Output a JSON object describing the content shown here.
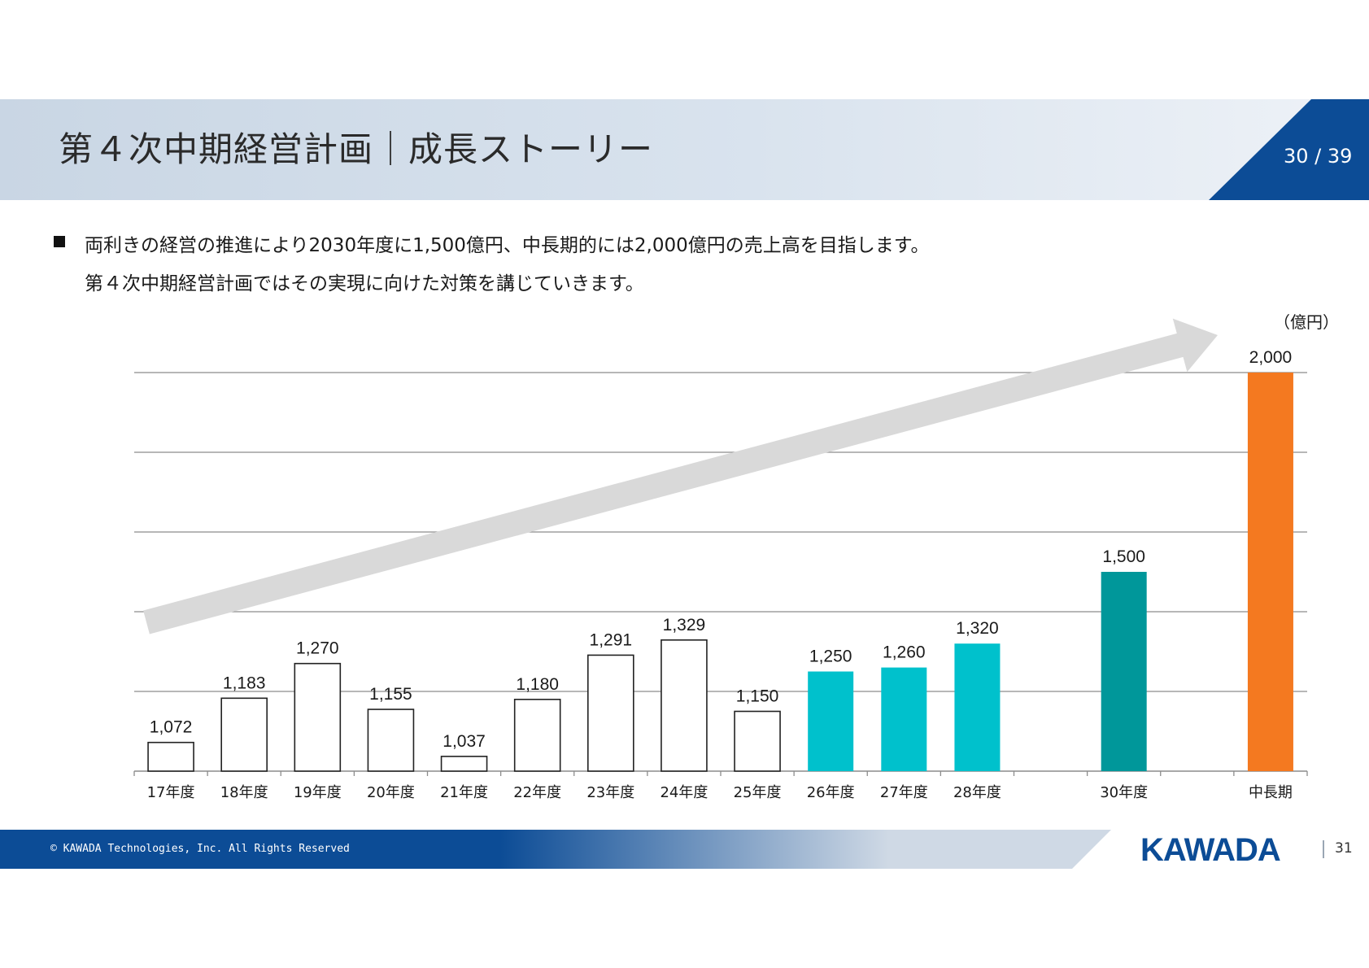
{
  "header": {
    "title": "第４次中期経営計画｜成長ストーリー",
    "page_indicator": "30 / 39"
  },
  "body": {
    "line1": "両利きの経営の推進により2030年度に1,500億円、中長期的には2,000億円の売上高を目指します。",
    "line2": "第４次中期経営計画ではその実現に向けた対策を講じていきます。"
  },
  "chart_data": {
    "type": "bar",
    "unit_label": "（億円）",
    "categories": [
      "17年度",
      "18年度",
      "19年度",
      "20年度",
      "21年度",
      "22年度",
      "23年度",
      "24年度",
      "25年度",
      "26年度",
      "27年度",
      "28年度",
      "",
      "30年度",
      "",
      "中長期"
    ],
    "values": [
      1072,
      1183,
      1270,
      1155,
      1037,
      1180,
      1291,
      1329,
      1150,
      1250,
      1260,
      1320,
      null,
      1500,
      null,
      2000
    ],
    "value_labels": [
      "1,072",
      "1,183",
      "1,270",
      "1,155",
      "1,037",
      "1,180",
      "1,291",
      "1,329",
      "1,150",
      "1,250",
      "1,260",
      "1,320",
      "",
      "1,500",
      "",
      "2,000"
    ],
    "bar_styles": [
      "outline",
      "outline",
      "outline",
      "outline",
      "outline",
      "outline",
      "outline",
      "outline",
      "outline",
      "cyan",
      "cyan",
      "cyan",
      "none",
      "teal",
      "none",
      "orange"
    ],
    "colors": {
      "outline_fill": "#ffffff",
      "outline_stroke": "#222222",
      "cyan": "#00c1cc",
      "teal": "#00979a",
      "orange": "#f47920",
      "gridline": "#8c8c8c",
      "trend_arrow": "#d9d9d9"
    },
    "ylim": [
      1000,
      2000
    ],
    "grid": true,
    "trend_arrow": "upward"
  },
  "footer": {
    "copyright": "© KAWADA Technologies, Inc. All Rights Reserved",
    "logo_text": "KAWADA",
    "page_number": "31"
  }
}
